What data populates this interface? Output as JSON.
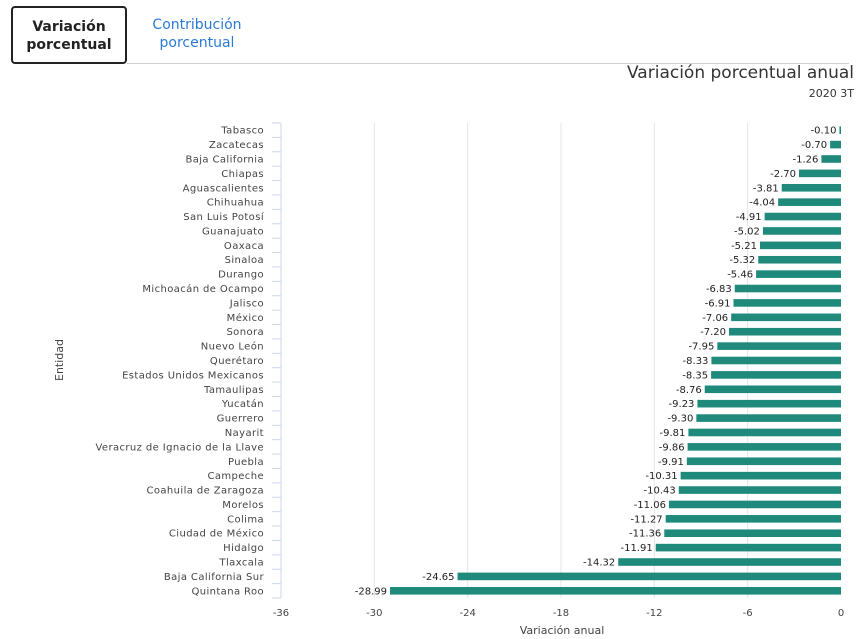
{
  "tabs": [
    {
      "label": "Variación porcentual",
      "active": true
    },
    {
      "label": "Contribución porcentual",
      "active": false
    }
  ],
  "colors": {
    "bar": "#1f8a7c",
    "grid": "#e4e4e4",
    "axis": "#ccd6eb",
    "tab_link": "#2b7bd3"
  },
  "chart_data": {
    "type": "bar",
    "orientation": "horizontal",
    "title": "Variación porcentual anual",
    "subtitle": "2020 3T",
    "xlabel": "Variación anual",
    "ylabel": "Entidad",
    "xlim": [
      -36,
      0
    ],
    "xticks": [
      -36,
      -30,
      -24,
      -18,
      -12,
      -6,
      0
    ],
    "grid": true,
    "categories": [
      "Tabasco",
      "Zacatecas",
      "Baja California",
      "Chiapas",
      "Aguascalientes",
      "Chihuahua",
      "San Luis Potosí",
      "Guanajuato",
      "Oaxaca",
      "Sinaloa",
      "Durango",
      "Michoacán de Ocampo",
      "Jalisco",
      "México",
      "Sonora",
      "Nuevo León",
      "Querétaro",
      "Estados Unidos Mexicanos",
      "Tamaulipas",
      "Yucatán",
      "Guerrero",
      "Nayarit",
      "Veracruz de Ignacio de la Llave",
      "Puebla",
      "Campeche",
      "Coahuila de Zaragoza",
      "Morelos",
      "Colima",
      "Ciudad de México",
      "Hidalgo",
      "Tlaxcala",
      "Baja California Sur",
      "Quintana Roo"
    ],
    "values": [
      -0.1,
      -0.7,
      -1.26,
      -2.7,
      -3.81,
      -4.04,
      -4.91,
      -5.02,
      -5.21,
      -5.32,
      -5.46,
      -6.83,
      -6.91,
      -7.06,
      -7.2,
      -7.95,
      -8.33,
      -8.35,
      -8.76,
      -9.23,
      -9.3,
      -9.81,
      -9.86,
      -9.91,
      -10.31,
      -10.43,
      -11.06,
      -11.27,
      -11.36,
      -11.91,
      -14.32,
      -24.65,
      -28.99
    ],
    "value_labels": [
      "-0.10",
      "-0.70",
      "-1.26",
      "-2.70",
      "-3.81",
      "-4.04",
      "-4.91",
      "-5.02",
      "-5.21",
      "-5.32",
      "-5.46",
      "-6.83",
      "-6.91",
      "-7.06",
      "-7.20",
      "-7.95",
      "-8.33",
      "-8.35",
      "-8.76",
      "-9.23",
      "-9.30",
      "-9.81",
      "-9.86",
      "-9.91",
      "-10.31",
      "-10.43",
      "-11.06",
      "-11.27",
      "-11.36",
      "-11.91",
      "-14.32",
      "-24.65",
      "-28.99"
    ]
  }
}
